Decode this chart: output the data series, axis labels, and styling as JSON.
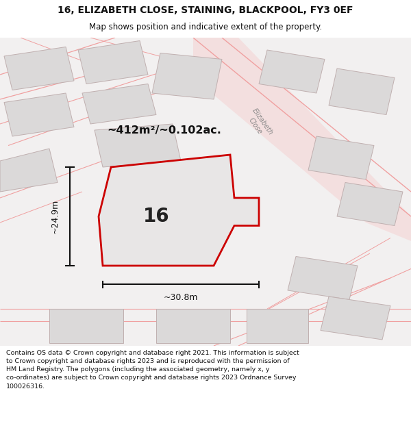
{
  "title_line1": "16, ELIZABETH CLOSE, STAINING, BLACKPOOL, FY3 0EF",
  "title_line2": "Map shows position and indicative extent of the property.",
  "footer_line1": "Contains OS data © Crown copyright and database right 2021. This information is subject",
  "footer_line2": "to Crown copyright and database rights 2023 and is reproduced with the permission of",
  "footer_line3": "HM Land Registry. The polygons (including the associated geometry, namely x, y",
  "footer_line4": "co-ordinates) are subject to Crown copyright and database rights 2023 Ordnance Survey",
  "footer_line5": "100026316.",
  "area_label": "~412m²/~0.102ac.",
  "plot_number": "16",
  "dim_width": "~30.8m",
  "dim_height": "~24.9m",
  "map_bg": "#f2f0f0",
  "plot_fill": "#e8e6e6",
  "plot_edge": "#cc0000",
  "building_fill": "#dbd9d9",
  "building_edge": "#c0b0b0",
  "road_line": "#f0a0a0",
  "road_fill": "#f5d0d0",
  "elizabeth_close_color": "#c8a0a0",
  "dim_color": "#111111",
  "area_text_color": "#111111",
  "plot_num_color": "#222222",
  "title_color": "#111111",
  "footer_color": "#111111"
}
